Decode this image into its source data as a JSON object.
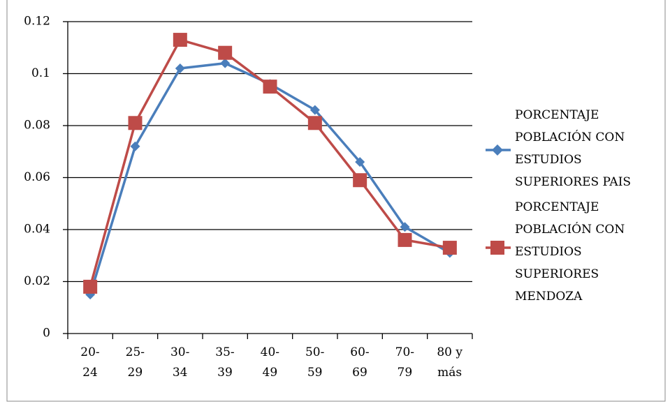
{
  "chart_data": {
    "type": "line",
    "categories": [
      "20-\n24",
      "25-\n29",
      "30-\n34",
      "35-\n39",
      "40-\n49",
      "50-\n59",
      "60-\n69",
      "70-\n79",
      "80 y\nmás"
    ],
    "series": [
      {
        "name": "PORCENTAJE POBLACIÓN CON ESTUDIOS SUPERIORES PAIS",
        "color": "#4a7ebb",
        "marker": "diamond",
        "values": [
          0.015,
          0.072,
          0.102,
          0.104,
          0.096,
          0.086,
          0.066,
          0.041,
          0.031
        ]
      },
      {
        "name": "PORCENTAJE POBLACIÓN CON ESTUDIOS SUPERIORES MENDOZA",
        "color": "#be4b48",
        "marker": "square",
        "values": [
          0.018,
          0.081,
          0.113,
          0.108,
          0.095,
          0.081,
          0.059,
          0.036,
          0.033
        ]
      }
    ],
    "ylim": [
      0,
      0.12
    ],
    "yticks": [
      0,
      0.02,
      0.04,
      0.06,
      0.08,
      0.1,
      0.12
    ],
    "grid": true,
    "legend": "right"
  }
}
